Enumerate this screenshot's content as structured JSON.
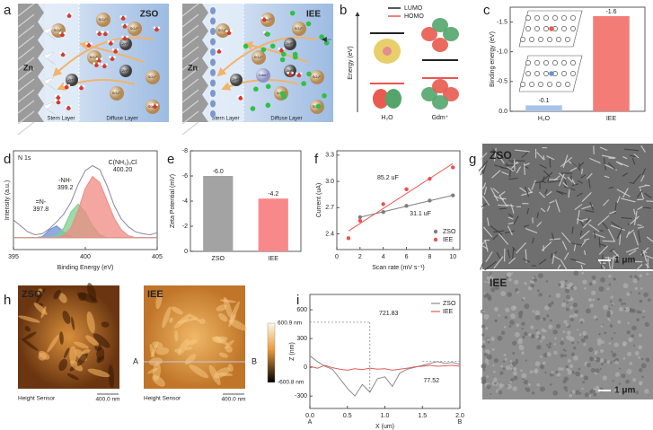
{
  "panel_labels": [
    "a",
    "b",
    "c",
    "d",
    "e",
    "f",
    "g",
    "h",
    "i"
  ],
  "schematic": {
    "titles": [
      "ZSO",
      "IEE"
    ],
    "electrode": "Zn",
    "layers": [
      "Stern Layer",
      "Diffuse Layer"
    ],
    "sulfate": "SO₄²⁻",
    "zinc_ion": "Zn²⁺",
    "cation": "Gdm⁺"
  },
  "orbitals": {
    "y_label": "Energy (eV)",
    "legend": [
      "LUMO",
      "HOMO"
    ],
    "molecules": [
      "H₂O",
      "Gdm⁺"
    ]
  },
  "sem": {
    "titles": [
      "ZSO",
      "IEE"
    ],
    "scale_bar": "1 μm"
  },
  "afm": {
    "titles": [
      "ZSO",
      "IEE"
    ],
    "caption": "Height Sensor",
    "scale_bar": "400.0 nm",
    "colorbar": [
      "600.9 nm",
      "-600.8 nm"
    ],
    "line_ends": [
      "A",
      "B"
    ]
  },
  "chart_data": [
    {
      "type": "bar",
      "y_label": "Binding energy (eV)",
      "categories": [
        "H₂O",
        "IEE"
      ],
      "values": [
        -0.1,
        -1.6
      ],
      "value_labels": [
        "-0.1",
        "-1.6"
      ],
      "colors": [
        "#a9c3e8",
        "#f47c77"
      ],
      "ylim": [
        0,
        -1.75
      ],
      "yticks": [
        {
          "value": 0,
          "label": "0.0"
        },
        -0.5,
        {
          "value": -1,
          "label": "-1.0"
        },
        -1.5
      ]
    },
    {
      "type": "line",
      "title": "N 1s",
      "x_label": "Binding Energy (eV)",
      "y_label": "Intensity (a.u.)",
      "x": [
        395,
        395.5,
        396,
        396.5,
        397,
        397.5,
        398,
        398.5,
        399,
        399.5,
        400,
        400.5,
        401,
        401.5,
        402,
        402.5,
        403,
        403.5,
        404,
        404.5,
        405
      ],
      "series": [
        {
          "color": "#8c84a3",
          "values": [
            30,
            24,
            18,
            15,
            16,
            21,
            28,
            36,
            48,
            66,
            80,
            85,
            81,
            65,
            45,
            31,
            23,
            18,
            16,
            15,
            17
          ]
        },
        {
          "color": "#6d8fd3",
          "fill": true,
          "values": [
            12,
            12,
            12,
            12,
            13,
            20,
            24,
            18,
            13,
            12,
            12,
            12,
            12,
            12,
            12,
            12,
            12,
            12,
            12,
            12,
            12
          ]
        },
        {
          "color": "#7ccf8f",
          "fill": true,
          "values": [
            12,
            12,
            12,
            12,
            12,
            12,
            14,
            22,
            38,
            46,
            38,
            24,
            15,
            12,
            12,
            12,
            12,
            12,
            12,
            12,
            12
          ]
        },
        {
          "color": "#f08a82",
          "fill": true,
          "values": [
            12,
            12,
            12,
            12,
            12,
            12,
            12,
            14,
            22,
            40,
            62,
            74,
            68,
            50,
            32,
            20,
            14,
            12,
            12,
            12,
            12
          ]
        }
      ],
      "annotations": [
        [
          "=N-",
          "397.8"
        ],
        [
          "-NH-",
          "399.2"
        ],
        [
          "C(NH₂)₃Cl",
          "400.20"
        ]
      ],
      "xlim": [
        395,
        405
      ],
      "xticks": [
        395,
        400,
        405
      ],
      "ylim": [
        0,
        100
      ]
    },
    {
      "type": "bar",
      "y_label": "Zeta Potential (mV)",
      "categories": [
        "ZSO",
        "IEE"
      ],
      "values": [
        -6.0,
        -4.2
      ],
      "value_labels": [
        "-6.0",
        "-4.2"
      ],
      "colors": [
        "#a3a3a3",
        "#f7898b"
      ],
      "ylim": [
        0,
        -8
      ],
      "yticks": [
        0,
        -2,
        -4,
        -6,
        -8
      ]
    },
    {
      "type": "scatter",
      "x_label": "Scan rate (mV s⁻¹)",
      "y_label": "Current (uA)",
      "series": [
        {
          "name": "ZSO",
          "color": "#7f7f7f",
          "x": [
            2,
            4,
            6,
            8,
            10
          ],
          "values": [
            2.59,
            2.65,
            2.72,
            2.78,
            2.84
          ]
        },
        {
          "name": "IEE",
          "color": "#e8524f",
          "x": [
            1,
            2,
            4,
            6,
            8,
            10
          ],
          "values": [
            2.35,
            2.55,
            2.74,
            2.91,
            3.03,
            3.16
          ]
        }
      ],
      "annotations": [
        "31.1 uF",
        "85.2 uF"
      ],
      "fit_lines": true,
      "legend": "lower right",
      "xlim": [
        0,
        10.6
      ],
      "xticks": [
        0,
        2,
        4,
        6,
        8,
        10
      ],
      "ylim": [
        2.22,
        3.35
      ],
      "yticks": [
        2.4,
        2.7,
        {
          "value": 3,
          "label": "3.0"
        },
        3.3
      ]
    },
    {
      "type": "line",
      "x_label": "X (um)",
      "y_label": "Z (nm)",
      "x": [
        0,
        0.1,
        0.2,
        0.3,
        0.4,
        0.5,
        0.6,
        0.7,
        0.8,
        0.9,
        1,
        1.1,
        1.2,
        1.3,
        1.4,
        1.5,
        1.6,
        1.7,
        1.8,
        1.9,
        2
      ],
      "series": [
        {
          "name": "ZSO",
          "color": "#8a8a8a",
          "values": [
            120,
            60,
            10,
            -20,
            -120,
            -220,
            -300,
            -180,
            -260,
            -120,
            -100,
            -200,
            -60,
            -20,
            0,
            20,
            40,
            60,
            40,
            50,
            30
          ]
        },
        {
          "name": "IEE",
          "color": "#e05a5a",
          "values": [
            10,
            -10,
            20,
            -5,
            -20,
            -30,
            -15,
            -25,
            -10,
            -20,
            -15,
            -30,
            -20,
            -10,
            5,
            10,
            20,
            10,
            15,
            20,
            10
          ]
        }
      ],
      "annotations": [
        "721.83",
        "77.52"
      ],
      "legend": "upper right",
      "xlim": [
        0,
        2
      ],
      "xticks": [
        {
          "value": 0,
          "label": "0.0"
        },
        0.5,
        {
          "value": 1,
          "label": "1.0"
        },
        1.5,
        {
          "value": 2,
          "label": "2.0"
        }
      ],
      "ylim": [
        -430,
        760
      ],
      "yticks": [
        -300,
        0,
        300,
        600
      ]
    }
  ]
}
